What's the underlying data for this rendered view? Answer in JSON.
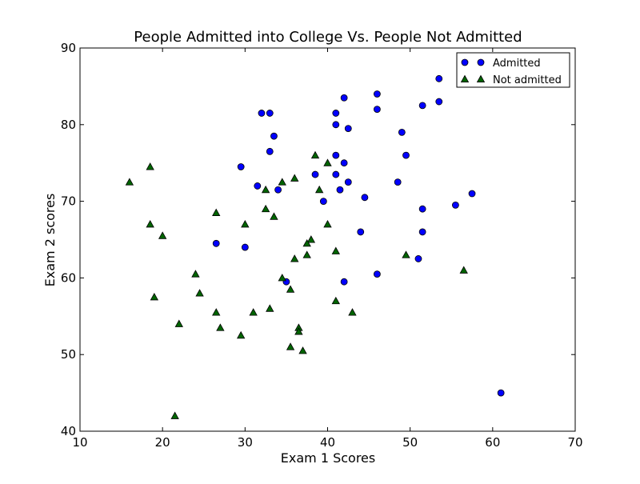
{
  "chart_data": {
    "type": "scatter",
    "title": "People Admitted into College Vs. People Not Admitted",
    "xlabel": "Exam 1 Scores",
    "ylabel": "Exam 2 scores",
    "xlim": [
      10,
      70
    ],
    "ylim": [
      40,
      90
    ],
    "x_ticks": [
      "10",
      "20",
      "30",
      "40",
      "50",
      "60",
      "70"
    ],
    "y_ticks": [
      "40",
      "50",
      "60",
      "70",
      "80",
      "90"
    ],
    "grid": false,
    "legend_position": "top-right",
    "series": [
      {
        "name": "Admitted",
        "marker": "circle",
        "color": "#0000ff",
        "points": [
          [
            32,
            81.5
          ],
          [
            33,
            81.5
          ],
          [
            42,
            83.5
          ],
          [
            41,
            81.5
          ],
          [
            46,
            84
          ],
          [
            53.5,
            86
          ],
          [
            46,
            82
          ],
          [
            51.5,
            82.5
          ],
          [
            53.5,
            83
          ],
          [
            41,
            80
          ],
          [
            42.5,
            79.5
          ],
          [
            33.5,
            78.5
          ],
          [
            49,
            79
          ],
          [
            33,
            76.5
          ],
          [
            41,
            76
          ],
          [
            49.5,
            76
          ],
          [
            29.5,
            74.5
          ],
          [
            42,
            75
          ],
          [
            38.5,
            73.5
          ],
          [
            41,
            73.5
          ],
          [
            31.5,
            72
          ],
          [
            42.5,
            72.5
          ],
          [
            48.5,
            72.5
          ],
          [
            34,
            71.5
          ],
          [
            41.5,
            71.5
          ],
          [
            57.5,
            71
          ],
          [
            44.5,
            70.5
          ],
          [
            39.5,
            70
          ],
          [
            55.5,
            69.5
          ],
          [
            51.5,
            69
          ],
          [
            44,
            66
          ],
          [
            51.5,
            66
          ],
          [
            26.5,
            64.5
          ],
          [
            30,
            64
          ],
          [
            51,
            62.5
          ],
          [
            35,
            59.5
          ],
          [
            42,
            59.5
          ],
          [
            46,
            60.5
          ],
          [
            61,
            45
          ]
        ]
      },
      {
        "name": "Not admitted",
        "marker": "triangle",
        "color": "#006400",
        "points": [
          [
            16,
            72.5
          ],
          [
            18.5,
            74.5
          ],
          [
            18.5,
            67
          ],
          [
            20,
            65.5
          ],
          [
            26.5,
            68.5
          ],
          [
            30,
            67
          ],
          [
            32.5,
            71.5
          ],
          [
            32.5,
            69
          ],
          [
            33.5,
            68
          ],
          [
            34.5,
            72.5
          ],
          [
            36,
            73
          ],
          [
            38.5,
            76
          ],
          [
            40,
            75
          ],
          [
            39,
            71.5
          ],
          [
            40,
            67
          ],
          [
            38,
            65
          ],
          [
            37.5,
            64.5
          ],
          [
            36,
            62.5
          ],
          [
            37.5,
            63
          ],
          [
            41,
            63.5
          ],
          [
            49.5,
            63
          ],
          [
            56.5,
            61
          ],
          [
            24,
            60.5
          ],
          [
            34.5,
            60
          ],
          [
            35.5,
            58.5
          ],
          [
            24.5,
            58
          ],
          [
            19,
            57.5
          ],
          [
            41,
            57
          ],
          [
            26.5,
            55.5
          ],
          [
            31,
            55.5
          ],
          [
            33,
            56
          ],
          [
            43,
            55.5
          ],
          [
            22,
            54
          ],
          [
            27,
            53.5
          ],
          [
            29.5,
            52.5
          ],
          [
            36.5,
            53.5
          ],
          [
            36.5,
            53
          ],
          [
            35.5,
            51
          ],
          [
            37,
            50.5
          ],
          [
            21.5,
            42
          ]
        ]
      }
    ]
  }
}
